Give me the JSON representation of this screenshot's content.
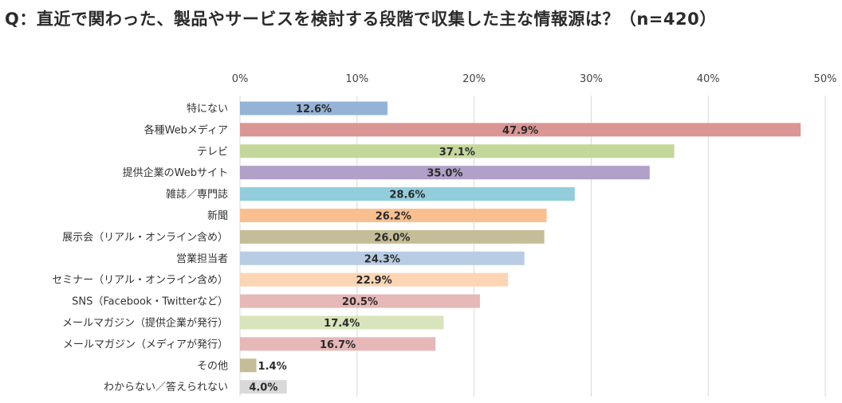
{
  "title": "Q：直近で関わった、製品やサービスを検討する段階で収集した主な情報源は？（n=420）",
  "chart_data": {
    "type": "bar",
    "orientation": "horizontal",
    "title": "Q：直近で関わった、製品やサービスを検討する段階で収集した主な情報源は？（n=420）",
    "xlabel": "",
    "ylabel": "",
    "xlim": [
      0,
      50
    ],
    "x_ticks": [
      0,
      10,
      20,
      30,
      40,
      50
    ],
    "tick_suffix": "%",
    "grid": true,
    "axis_position": "top",
    "categories": [
      "特にない",
      "各種Webメディア",
      "テレビ",
      "提供企業のWebサイト",
      "雑誌／専門誌",
      "新聞",
      "展示会（リアル・オンライン含め）",
      "営業担当者",
      "セミナー（リアル・オンライン含め）",
      "SNS（Facebook・Twitterなど）",
      "メールマガジン（提供企業が発行）",
      "メールマガジン（メディアが発行）",
      "その他",
      "わからない／答えられない"
    ],
    "values": [
      12.6,
      47.9,
      37.1,
      35.0,
      28.6,
      26.2,
      26.0,
      24.3,
      22.9,
      20.5,
      17.4,
      16.7,
      1.4,
      4.0
    ],
    "value_labels": [
      "12.6%",
      "47.9%",
      "37.1%",
      "35.0%",
      "28.6%",
      "26.2%",
      "26.0%",
      "24.3%",
      "22.9%",
      "20.5%",
      "17.4%",
      "16.7%",
      "1.4%",
      "4.0%"
    ],
    "colors": [
      "#95b3d7",
      "#da9694",
      "#c4d79b",
      "#b1a0c7",
      "#92cddc",
      "#fabf8f",
      "#c4bd97",
      "#b8cce4",
      "#fcd5b4",
      "#e6b8b7",
      "#d8e4bc",
      "#e6b8b7",
      "#c4bd97",
      "#d9d9d9"
    ]
  }
}
